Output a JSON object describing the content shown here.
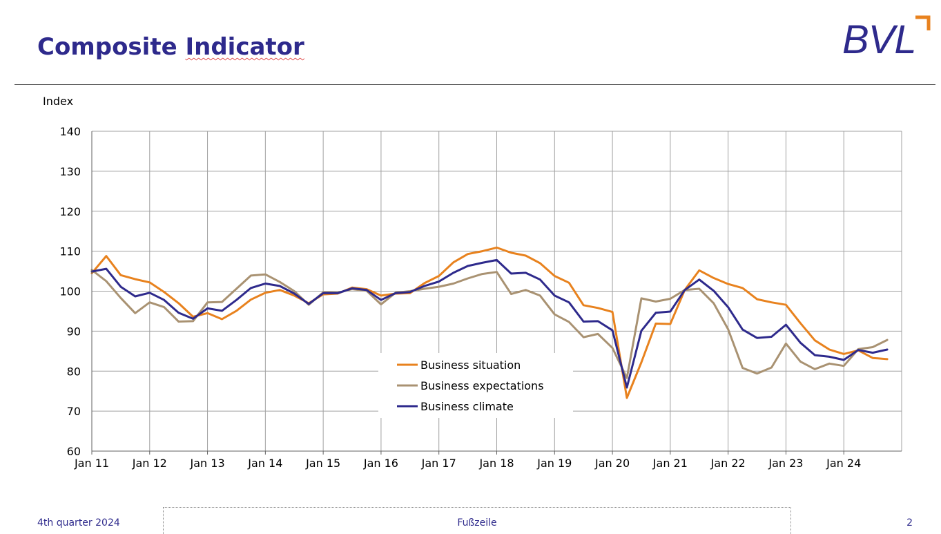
{
  "slide": {
    "title_word_1": "Composite",
    "title_word_2": "Indicator",
    "logo_text": "BVL",
    "footer_left": "4th quarter 2024",
    "footer_center": "Fußzeile",
    "page_number": "2"
  },
  "colors": {
    "title": "#2e2a8c",
    "logo_accent": "#e8821e",
    "business_situation": "#e8821e",
    "business_expectations": "#a99272",
    "business_climate": "#2e2a8c",
    "grid": "#a0a0a0"
  },
  "icons": {
    "logo_mark": "orange-corner-bracket"
  },
  "chart_data": {
    "type": "line",
    "title": "",
    "xlabel": "",
    "ylabel": "Index",
    "ylim": [
      60,
      140
    ],
    "yticks": [
      60,
      70,
      80,
      90,
      100,
      110,
      120,
      130,
      140
    ],
    "xlim": [
      "Jan 11",
      "Dec 24"
    ],
    "xticks": [
      "Jan 11",
      "Jan 12",
      "Jan 13",
      "Jan 14",
      "Jan 15",
      "Jan 16",
      "Jan 17",
      "Jan 18",
      "Jan 19",
      "Jan 20",
      "Jan 21",
      "Jan 22",
      "Jan 23",
      "Jan 24"
    ],
    "grid": true,
    "legend_position": "bottom-center",
    "x": [
      "Jan 11",
      "Apr 11",
      "Jul 11",
      "Oct 11",
      "Jan 12",
      "Apr 12",
      "Jul 12",
      "Oct 12",
      "Jan 13",
      "Apr 13",
      "Jul 13",
      "Oct 13",
      "Jan 14",
      "Apr 14",
      "Jul 14",
      "Oct 14",
      "Jan 15",
      "Apr 15",
      "Jul 15",
      "Oct 15",
      "Jan 16",
      "Apr 16",
      "Jul 16",
      "Oct 16",
      "Jan 17",
      "Apr 17",
      "Jul 17",
      "Oct 17",
      "Jan 18",
      "Apr 18",
      "Jul 18",
      "Oct 18",
      "Jan 19",
      "Apr 19",
      "Jul 19",
      "Oct 19",
      "Jan 20",
      "Apr 20",
      "Jul 20",
      "Oct 20",
      "Jan 21",
      "Apr 21",
      "Jul 21",
      "Oct 21",
      "Jan 22",
      "Apr 22",
      "Jul 22",
      "Oct 22",
      "Jan 23",
      "Apr 23",
      "Jul 23",
      "Oct 23",
      "Jan 24",
      "Apr 24",
      "Jul 24",
      "Oct 24"
    ],
    "series": [
      {
        "name": "Business situation",
        "color": "#e8821e",
        "values": [
          104.5,
          108.8,
          104.0,
          103.0,
          102.2,
          99.8,
          97.0,
          93.6,
          94.5,
          93.0,
          95.1,
          97.9,
          99.6,
          100.3,
          98.9,
          97.0,
          99.2,
          99.4,
          100.9,
          100.5,
          98.9,
          99.4,
          99.5,
          102.0,
          103.8,
          107.2,
          109.3,
          110.0,
          110.9,
          109.6,
          108.9,
          107.0,
          103.8,
          102.1,
          96.5,
          95.8,
          94.8,
          73.3,
          82.2,
          91.9,
          91.8,
          100.3,
          105.2,
          103.3,
          101.8,
          100.8,
          98.0,
          97.2,
          96.6,
          92.0,
          87.7,
          85.4,
          84.3,
          85.2,
          83.3,
          83.0
        ]
      },
      {
        "name": "Business expectations",
        "color": "#a99272",
        "values": [
          105.3,
          102.5,
          98.3,
          94.5,
          97.2,
          96.0,
          92.4,
          92.5,
          97.2,
          97.3,
          100.6,
          103.9,
          104.2,
          102.3,
          100.0,
          96.6,
          99.7,
          99.6,
          100.5,
          100.1,
          96.7,
          99.6,
          100.0,
          100.6,
          101.1,
          101.9,
          103.2,
          104.3,
          104.8,
          99.3,
          100.3,
          98.9,
          94.2,
          92.3,
          88.5,
          89.3,
          85.8,
          78.3,
          98.2,
          97.4,
          98.1,
          100.3,
          100.6,
          97.0,
          90.5,
          80.8,
          79.4,
          80.9,
          86.9,
          82.4,
          80.5,
          81.9,
          81.3,
          85.5,
          86.0,
          87.8
        ]
      },
      {
        "name": "Business climate",
        "color": "#2e2a8c",
        "values": [
          104.9,
          105.6,
          101.1,
          98.7,
          99.6,
          97.8,
          94.6,
          93.1,
          95.7,
          95.1,
          97.8,
          100.8,
          101.9,
          101.3,
          99.4,
          96.8,
          99.5,
          99.5,
          100.7,
          100.3,
          97.8,
          99.5,
          99.8,
          101.3,
          102.4,
          104.6,
          106.3,
          107.1,
          107.8,
          104.4,
          104.6,
          102.9,
          98.9,
          97.2,
          92.4,
          92.5,
          90.2,
          75.9,
          90.1,
          94.6,
          94.9,
          100.3,
          102.9,
          100.1,
          96.0,
          90.4,
          88.3,
          88.6,
          91.6,
          87.1,
          84.0,
          83.6,
          82.8,
          85.3,
          84.6,
          85.4
        ]
      }
    ]
  }
}
